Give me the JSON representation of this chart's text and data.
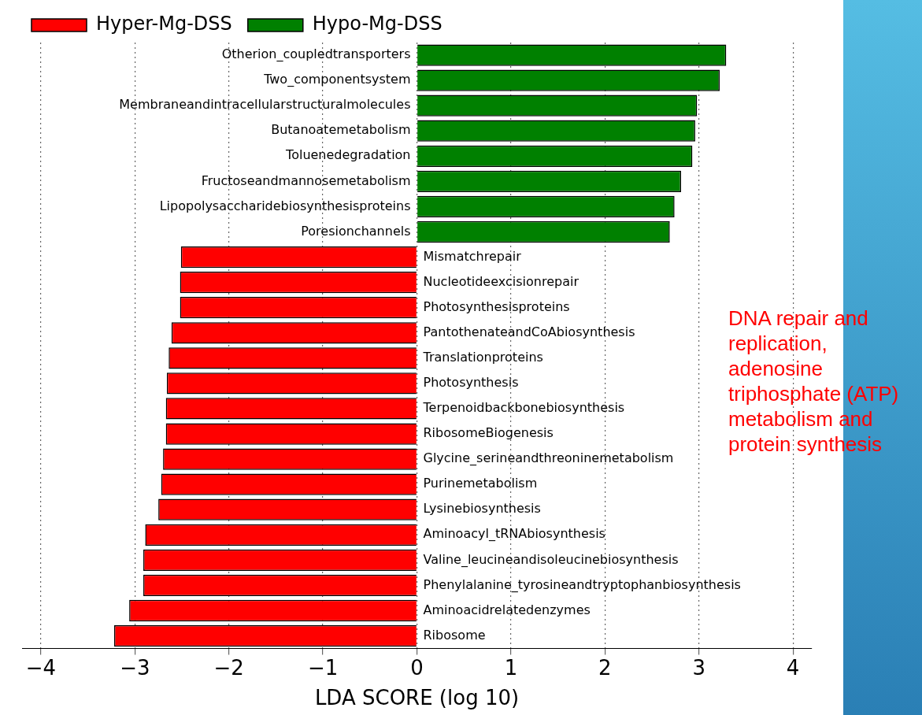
{
  "chart_data": {
    "type": "bar",
    "orientation": "horizontal",
    "xlabel": "LDA SCORE (log 10)",
    "categories": [
      "Otherion_coupledtransporters",
      "Two_componentsystem",
      "Membraneandintracellularstructuralmolecules",
      "Butanoatemetabolism",
      "Toluenedegradation",
      "Fructoseandmannosemetabolism",
      "Lipopolysaccharidebiosynthesisproteins",
      "Poresionchannels",
      "Mismatchrepair",
      "Nucleotideexcisionrepair",
      "Photosynthesisproteins",
      "PantothenateandCoAbiosynthesis",
      "Translationproteins",
      "Photosynthesis",
      "Terpenoidbackbonebiosynthesis",
      "RibosomeBiogenesis",
      "Glycine_serineandthreoninemetabolism",
      "Purinemetabolism",
      "Lysinebiosynthesis",
      "Aminoacyl_tRNAbiosynthesis",
      "Valine_leucineandisoleucinebiosynthesis",
      "Phenylalanine_tyrosineandtryptophanbiosynthesis",
      "Aminoacidrelatedenzymes",
      "Ribosome"
    ],
    "series": [
      {
        "name": "Hyper-Mg-DSS",
        "color": "#ff0000",
        "values": [
          null,
          null,
          null,
          null,
          null,
          null,
          null,
          null,
          -2.51,
          -2.52,
          -2.52,
          -2.61,
          -2.64,
          -2.66,
          -2.67,
          -2.67,
          -2.7,
          -2.72,
          -2.75,
          -2.89,
          -2.91,
          -2.91,
          -3.06,
          -3.22
        ]
      },
      {
        "name": "Hypo-Mg-DSS",
        "color": "#008000",
        "values": [
          3.29,
          3.22,
          2.98,
          2.96,
          2.93,
          2.81,
          2.74,
          2.69,
          null,
          null,
          null,
          null,
          null,
          null,
          null,
          null,
          null,
          null,
          null,
          null,
          null,
          null,
          null,
          null
        ]
      }
    ],
    "xlim": [
      -4.2,
      4.2
    ],
    "xticks": [
      -4,
      -3,
      -2,
      -1,
      0,
      1,
      2,
      3,
      4
    ],
    "grid": "x",
    "legend": "top left",
    "annotations": [
      "DNA repair and replication, adenosine triphosphate (ATP) metabolism and protein synthesis"
    ]
  }
}
